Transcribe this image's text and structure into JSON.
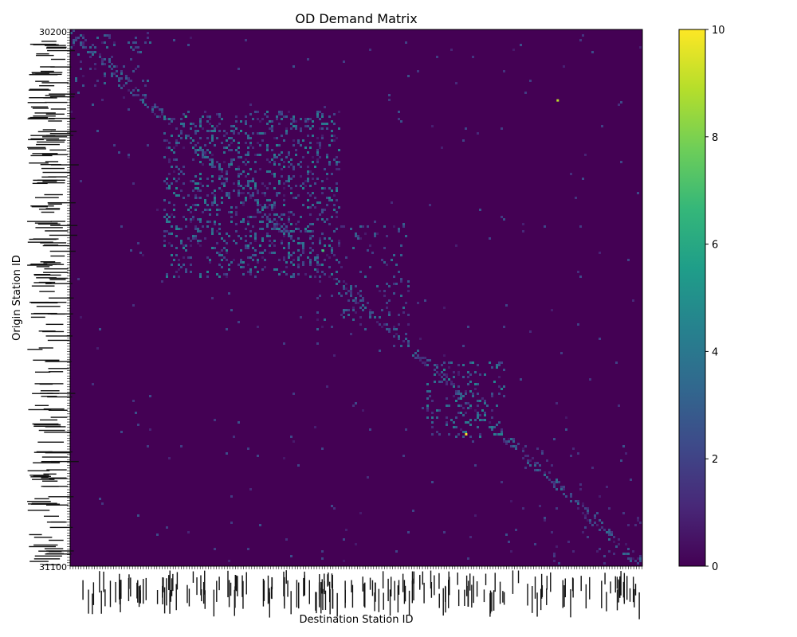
{
  "chart_data": {
    "type": "heatmap",
    "title": "OD Demand Matrix",
    "xlabel": "Destination Station ID",
    "ylabel": "Origin Station ID",
    "colormap": "viridis",
    "colorbar": {
      "range": [
        0,
        10
      ],
      "ticks": [
        0,
        2,
        4,
        6,
        8,
        10
      ],
      "colors": [
        "#440154",
        "#482878",
        "#3e4989",
        "#31688e",
        "#26828e",
        "#1f9e89",
        "#35b779",
        "#6ece58",
        "#b5de2b",
        "#fde725"
      ]
    },
    "background_value": 0,
    "y_tick_first": "30200",
    "y_tick_last": "31100",
    "clusters": [
      {
        "rows": [
          0.15,
          0.46
        ],
        "cols": [
          0.16,
          0.47
        ],
        "density": 0.18,
        "max": 4
      },
      {
        "rows": [
          0.36,
          0.56
        ],
        "cols": [
          0.43,
          0.59
        ],
        "density": 0.06,
        "max": 3
      },
      {
        "rows": [
          0.62,
          0.76
        ],
        "cols": [
          0.62,
          0.76
        ],
        "density": 0.15,
        "max": 4
      },
      {
        "rows": [
          0.0,
          0.14
        ],
        "cols": [
          0.0,
          0.14
        ],
        "density": 0.05,
        "max": 3
      },
      {
        "rows": [
          0.76,
          1.0
        ],
        "cols": [
          0.76,
          1.0
        ],
        "density": 0.02,
        "max": 2
      }
    ],
    "bright_cells": [
      {
        "row": 0.13,
        "col": 0.85,
        "value": 9
      },
      {
        "row": 0.752,
        "col": 0.69,
        "value": 10
      },
      {
        "row": 0.41,
        "col": 0.44,
        "value": 7
      },
      {
        "row": 0.16,
        "col": 0.2,
        "value": 6
      }
    ]
  }
}
